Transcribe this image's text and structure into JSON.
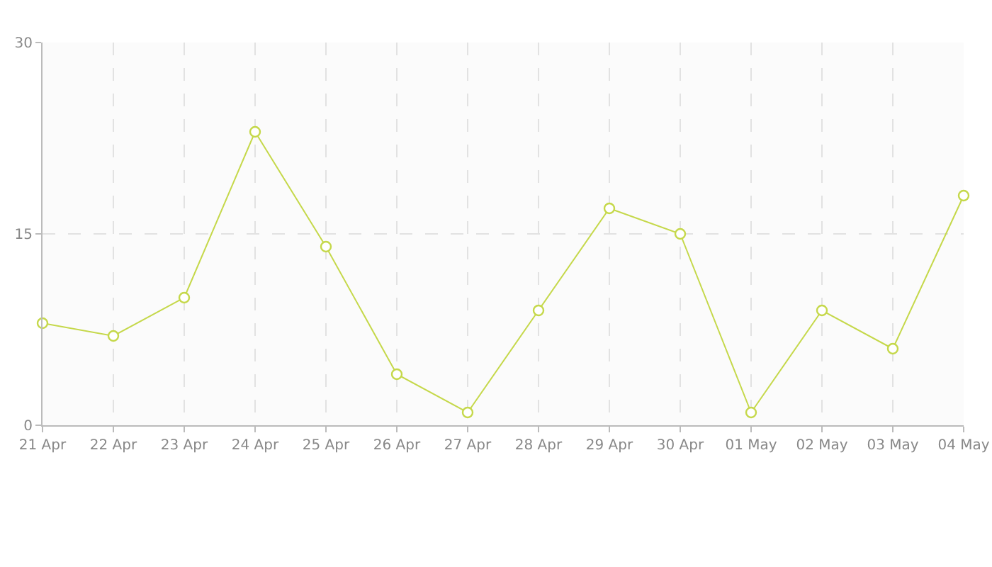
{
  "chart_data": {
    "type": "line",
    "categories": [
      "21 Apr",
      "22 Apr",
      "23 Apr",
      "24 Apr",
      "25 Apr",
      "26 Apr",
      "27 Apr",
      "28 Apr",
      "29 Apr",
      "30 Apr",
      "01 May",
      "02 May",
      "03 May",
      "04 May"
    ],
    "series": [
      {
        "color": "#c5d84a",
        "values": [
          8,
          7,
          10,
          23,
          14,
          4,
          1,
          9,
          17,
          15,
          1,
          9,
          6,
          18
        ]
      }
    ],
    "ylim": [
      0,
      30
    ],
    "yticks": [
      0,
      15,
      30
    ],
    "grid": true,
    "marker": "circle",
    "line_style": "solid",
    "legend": false
  }
}
